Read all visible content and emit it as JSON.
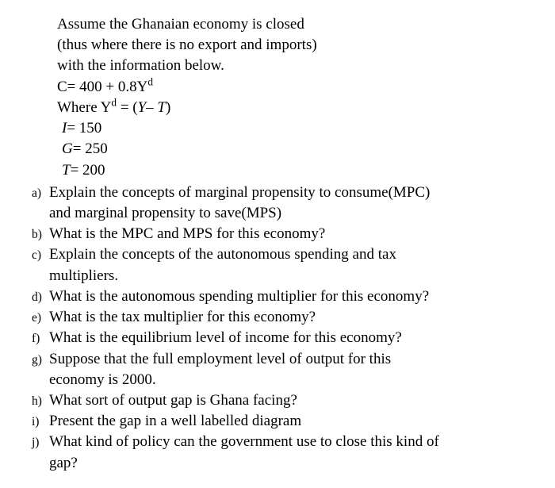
{
  "intro": {
    "line1": "Assume the Ghanaian economy is closed",
    "line2": "(thus where there is no export and imports)",
    "line3": "with the information below."
  },
  "equations": {
    "c_line_html": "C= 400 + 0.8Y<sup>d</sup>",
    "yd_line_html": "Where Y<sup>d</sup> = (<span class='ital'>Y– T</span>)",
    "i_line_html": "<span class='ital'>I</span>= 150",
    "g_line_html": "<span class='ital'>G</span>= 250",
    "t_line_html": "<span class='ital'>T</span>= 200"
  },
  "questions": {
    "a": {
      "label": "a)",
      "line1": "Explain the concepts of marginal propensity to consume(MPC)",
      "line2": "and marginal propensity to save(MPS)"
    },
    "b": {
      "label": "b)",
      "line1": "What is the MPC and MPS for this economy?"
    },
    "c": {
      "label": "c)",
      "line1": "Explain the concepts of the autonomous spending and tax",
      "line2": "multipliers."
    },
    "d": {
      "label": "d)",
      "line1": "What is the autonomous spending multiplier for this economy?"
    },
    "e": {
      "label": "e)",
      "line1": "What is the tax multiplier for this economy?"
    },
    "f": {
      "label": "f)",
      "line1": "What is the equilibrium level of income for this economy?"
    },
    "g": {
      "label": "g)",
      "line1": "Suppose that the full employment level of output for this",
      "line2": "economy is 2000."
    },
    "h": {
      "label": "h)",
      "line1": "What sort of output gap is Ghana facing?"
    },
    "i": {
      "label": "i)",
      "line1": "Present the gap in a well labelled diagram"
    },
    "j": {
      "label": "j)",
      "line1": "What kind of policy can the government use to close this kind of",
      "line2": "gap?"
    }
  }
}
